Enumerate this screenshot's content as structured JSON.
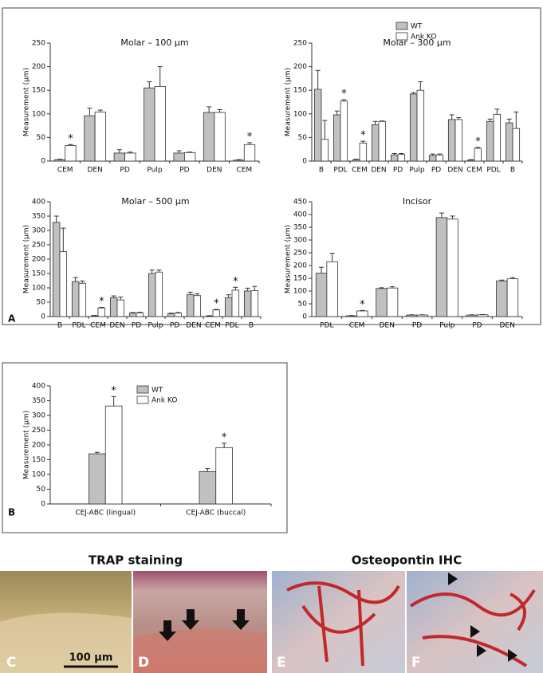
{
  "chart_data": [
    {
      "type": "bar",
      "title": "Molar – 100 µm",
      "y_label": "Measurement (µm)",
      "categories": [
        "CEM",
        "DEN",
        "PD",
        "Pulp",
        "PD",
        "DEN",
        "CEM"
      ],
      "series": [
        {
          "color": "#c0c0c0",
          "values": [
            3,
            96,
            17,
            155,
            17,
            103,
            2
          ],
          "errors": [
            1,
            16,
            7,
            13,
            5,
            12,
            1
          ]
        },
        {
          "color": "#ffffff",
          "values": [
            33,
            104,
            17,
            158,
            18,
            103,
            35
          ],
          "errors": [
            2,
            4,
            2,
            42,
            1,
            6,
            4
          ],
          "annotations": [
            "*",
            null,
            null,
            null,
            null,
            null,
            "*"
          ]
        }
      ],
      "ylim": [
        0,
        250
      ],
      "yticks": [
        0,
        50,
        100,
        150,
        200,
        250
      ]
    },
    {
      "type": "bar",
      "title": "Molar – 300 µm",
      "y_label": "Measurement (µm)",
      "legend": "top-right",
      "categories": [
        "B",
        "PDL",
        "CEM",
        "DEN",
        "PD",
        "Pulp",
        "PD",
        "DEN",
        "CEM",
        "PDL",
        "B"
      ],
      "series": [
        {
          "name": "WT",
          "color": "#c0c0c0",
          "values": [
            152,
            98,
            3,
            77,
            13,
            142,
            12,
            88,
            2,
            84,
            81
          ],
          "errors": [
            40,
            8,
            1,
            7,
            3,
            3,
            3,
            10,
            1,
            5,
            8
          ]
        },
        {
          "name": "Ank KO",
          "color": "#ffffff",
          "values": [
            46,
            127,
            38,
            84,
            14,
            150,
            13,
            88,
            27,
            99,
            69
          ],
          "errors": [
            40,
            3,
            4,
            1,
            2,
            18,
            2,
            4,
            2,
            11,
            35
          ],
          "annotations": [
            null,
            "*",
            "*",
            null,
            null,
            null,
            null,
            null,
            "*",
            null,
            null
          ]
        }
      ],
      "ylim": [
        0,
        250
      ],
      "yticks": [
        0,
        50,
        100,
        150,
        200,
        250
      ]
    },
    {
      "type": "bar",
      "title": "Molar – 500 µm",
      "y_label": "Measurement (µm)",
      "categories": [
        "B",
        "PDL",
        "CEM",
        "DEN",
        "PD",
        "Pulp",
        "PD",
        "DEN",
        "CEM",
        "PDL",
        "B"
      ],
      "series": [
        {
          "color": "#c0c0c0",
          "values": [
            328,
            122,
            3,
            66,
            12,
            150,
            10,
            77,
            2,
            66,
            89
          ],
          "errors": [
            22,
            14,
            1,
            6,
            2,
            12,
            2,
            8,
            1,
            10,
            10
          ]
        },
        {
          "color": "#ffffff",
          "values": [
            226,
            116,
            30,
            58,
            13,
            155,
            12,
            73,
            23,
            92,
            90
          ],
          "errors": [
            82,
            8,
            2,
            10,
            2,
            7,
            2,
            6,
            2,
            10,
            15
          ],
          "annotations": [
            null,
            null,
            "*",
            null,
            null,
            null,
            null,
            null,
            "*",
            "*",
            null
          ]
        }
      ],
      "ylim": [
        0,
        400
      ],
      "yticks": [
        0,
        50,
        100,
        150,
        200,
        250,
        300,
        350,
        400
      ]
    },
    {
      "type": "bar",
      "title": "Incisor",
      "y_label": "Measurement (µm)",
      "categories": [
        "PDL",
        "CEM",
        "DEN",
        "PD",
        "Pulp",
        "PD",
        "DEN"
      ],
      "series": [
        {
          "color": "#c0c0c0",
          "values": [
            170,
            3,
            110,
            6,
            388,
            6,
            140
          ],
          "errors": [
            23,
            1,
            3,
            1,
            18,
            1,
            3
          ]
        },
        {
          "color": "#ffffff",
          "values": [
            215,
            22,
            112,
            6,
            382,
            7,
            148
          ],
          "errors": [
            33,
            2,
            5,
            1,
            12,
            1,
            5
          ],
          "annotations": [
            null,
            "*",
            null,
            null,
            null,
            null,
            null
          ]
        }
      ],
      "ylim": [
        0,
        450
      ],
      "yticks": [
        0,
        50,
        100,
        150,
        200,
        250,
        300,
        350,
        400,
        450
      ]
    },
    {
      "type": "bar",
      "y_label": "Measurement (µm)",
      "legend": "top-right",
      "categories": [
        "CEJ-ABC (lingual)",
        "CEJ-ABC (buccal)"
      ],
      "series": [
        {
          "name": "WT",
          "color": "#c0c0c0",
          "values": [
            170,
            110
          ],
          "errors": [
            5,
            10
          ]
        },
        {
          "name": "Ank KO",
          "color": "#ffffff",
          "values": [
            332,
            191
          ],
          "errors": [
            32,
            15
          ],
          "annotations": [
            "*",
            "*"
          ]
        }
      ],
      "ylim": [
        0,
        400
      ],
      "yticks": [
        0,
        50,
        100,
        150,
        200,
        250,
        300,
        350,
        400
      ]
    }
  ],
  "panel_labels": [
    "A",
    "B",
    "C",
    "D",
    "E",
    "F"
  ],
  "image_titles": [
    "TRAP staining",
    "Osteopontin IHC"
  ],
  "scale_bar": "100 µm"
}
